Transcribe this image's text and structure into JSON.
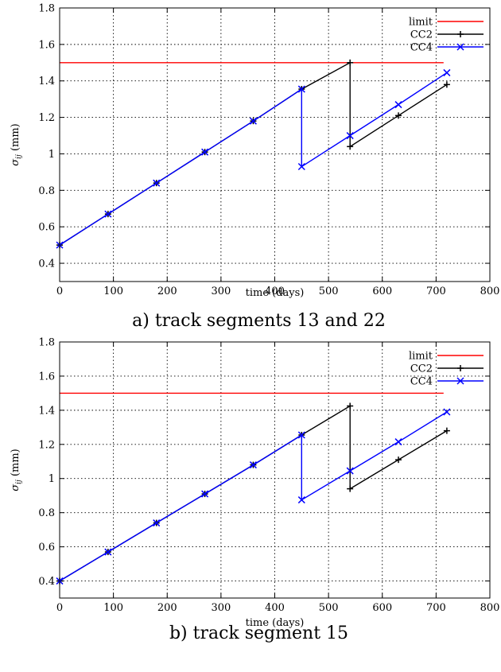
{
  "chart_data": [
    {
      "type": "line",
      "caption": "a) track segments 13 and 22",
      "xlabel": "time (days)",
      "ylabel": "σ",
      "ylabel_sub": "ij",
      "ylabel_unit": " (mm)",
      "xlim": [
        0,
        800
      ],
      "ylim": [
        0.3,
        1.8
      ],
      "xticks": [
        0,
        100,
        200,
        300,
        400,
        500,
        600,
        700,
        800
      ],
      "yticks": [
        0.4,
        0.6,
        0.8,
        1,
        1.2,
        1.4,
        1.6,
        1.8
      ],
      "xtick_labels": [
        "0",
        "100",
        "200",
        "300",
        "400",
        "500",
        "600",
        "700",
        "800"
      ],
      "ytick_labels": [
        "0.4",
        "0.6",
        "0.8",
        "1",
        "1.2",
        "1.4",
        "1.6",
        "1.8"
      ],
      "grid": true,
      "legend_position": "top-right",
      "series": [
        {
          "name": "limit",
          "color": "#ff0000",
          "marker": "none",
          "x": [
            0,
            714
          ],
          "y": [
            1.5,
            1.5
          ]
        },
        {
          "name": "CC2",
          "color": "#000000",
          "marker": "plus",
          "x": [
            0,
            90,
            180,
            270,
            360,
            450,
            540,
            540,
            630,
            720
          ],
          "y": [
            0.5,
            0.67,
            0.84,
            1.01,
            1.18,
            1.355,
            1.5,
            1.04,
            1.21,
            1.38
          ]
        },
        {
          "name": "CC4",
          "color": "#0000ff",
          "marker": "cross",
          "x": [
            0,
            90,
            180,
            270,
            360,
            450,
            450,
            540,
            630,
            720
          ],
          "y": [
            0.5,
            0.67,
            0.84,
            1.01,
            1.18,
            1.355,
            0.93,
            1.1,
            1.27,
            1.445
          ]
        }
      ]
    },
    {
      "type": "line",
      "caption": "b) track segment 15",
      "xlabel": "time (days)",
      "ylabel": "σ",
      "ylabel_sub": "ij",
      "ylabel_unit": " (mm)",
      "xlim": [
        0,
        800
      ],
      "ylim": [
        0.3,
        1.8
      ],
      "xticks": [
        0,
        100,
        200,
        300,
        400,
        500,
        600,
        700,
        800
      ],
      "yticks": [
        0.4,
        0.6,
        0.8,
        1,
        1.2,
        1.4,
        1.6,
        1.8
      ],
      "xtick_labels": [
        "0",
        "100",
        "200",
        "300",
        "400",
        "500",
        "600",
        "700",
        "800"
      ],
      "ytick_labels": [
        "0.4",
        "0.6",
        "0.8",
        "1",
        "1.2",
        "1.4",
        "1.6",
        "1.8"
      ],
      "grid": true,
      "legend_position": "top-right",
      "series": [
        {
          "name": "limit",
          "color": "#ff0000",
          "marker": "none",
          "x": [
            0,
            714
          ],
          "y": [
            1.5,
            1.5
          ]
        },
        {
          "name": "CC2",
          "color": "#000000",
          "marker": "plus",
          "x": [
            0,
            90,
            180,
            270,
            360,
            450,
            540,
            540,
            630,
            720
          ],
          "y": [
            0.4,
            0.57,
            0.74,
            0.91,
            1.08,
            1.255,
            1.425,
            0.94,
            1.11,
            1.28
          ]
        },
        {
          "name": "CC4",
          "color": "#0000ff",
          "marker": "cross",
          "x": [
            0,
            90,
            180,
            270,
            360,
            450,
            450,
            540,
            630,
            720
          ],
          "y": [
            0.4,
            0.57,
            0.74,
            0.91,
            1.08,
            1.255,
            0.875,
            1.045,
            1.215,
            1.39
          ]
        }
      ]
    }
  ]
}
